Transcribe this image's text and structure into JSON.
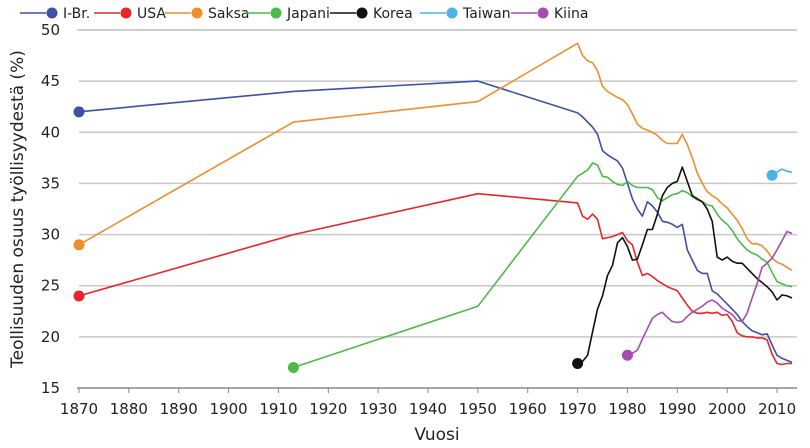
{
  "chart_data": {
    "type": "line",
    "title": "",
    "xlabel": "Vuosi",
    "ylabel": "Teollisuuden osuus työllisyydestä (%)",
    "xlim": [
      1870,
      2014
    ],
    "ylim": [
      15,
      50
    ],
    "xticks": [
      1870,
      1880,
      1890,
      1900,
      1910,
      1920,
      1930,
      1940,
      1950,
      1960,
      1970,
      1980,
      1990,
      2000,
      2010
    ],
    "yticks": [
      15,
      20,
      25,
      30,
      35,
      40,
      45,
      50
    ],
    "grid": "horizontal",
    "legend": "top",
    "series": [
      {
        "name": "I-Br.",
        "color": "#3f4fa8",
        "x": [
          1870,
          1913,
          1950,
          1970,
          1971,
          1972,
          1973,
          1974,
          1975,
          1976,
          1977,
          1978,
          1979,
          1980,
          1981,
          1982,
          1983,
          1984,
          1985,
          1986,
          1987,
          1988,
          1989,
          1990,
          1991,
          1992,
          1993,
          1994,
          1995,
          1996,
          1997,
          1998,
          1999,
          2000,
          2001,
          2002,
          2003,
          2004,
          2005,
          2006,
          2007,
          2008,
          2009,
          2010,
          2011,
          2012,
          2013
        ],
        "y": [
          42,
          44,
          45,
          41.9,
          41.5,
          41,
          40.5,
          39.8,
          38.2,
          37.8,
          37.5,
          37.2,
          36.5,
          35,
          33.5,
          32.5,
          31.8,
          33.2,
          32.8,
          32.2,
          31.3,
          31.2,
          31,
          30.7,
          31,
          28.5,
          27.5,
          26.5,
          26.2,
          26.2,
          24.5,
          24.2,
          23.7,
          23.2,
          22.7,
          22.2,
          21.5,
          21,
          20.6,
          20.4,
          20.2,
          20.3,
          19.2,
          18.2,
          17.9,
          17.7,
          17.5
        ]
      },
      {
        "name": "USA",
        "color": "#e8262a",
        "x": [
          1870,
          1913,
          1950,
          1970,
          1971,
          1972,
          1973,
          1974,
          1975,
          1976,
          1977,
          1978,
          1979,
          1980,
          1981,
          1982,
          1983,
          1984,
          1985,
          1986,
          1987,
          1988,
          1989,
          1990,
          1991,
          1992,
          1993,
          1994,
          1995,
          1996,
          1997,
          1998,
          1999,
          2000,
          2001,
          2002,
          2003,
          2004,
          2005,
          2006,
          2007,
          2008,
          2009,
          2010,
          2011,
          2012,
          2013
        ],
        "y": [
          24,
          30,
          34,
          33.1,
          31.8,
          31.5,
          32,
          31.5,
          29.6,
          29.7,
          29.8,
          30,
          30.2,
          29.4,
          29,
          27.3,
          26,
          26.2,
          25.9,
          25.5,
          25.2,
          24.9,
          24.7,
          24.5,
          23.8,
          23.1,
          22.5,
          22.3,
          22.3,
          22.4,
          22.3,
          22.4,
          22.1,
          22.2,
          21.5,
          20.4,
          20.1,
          20,
          20,
          19.9,
          19.9,
          19.7,
          18.3,
          17.4,
          17.3,
          17.4,
          17.4
        ]
      },
      {
        "name": "Saksa",
        "color": "#ee8e2c",
        "x": [
          1870,
          1913,
          1950,
          1970,
          1971,
          1972,
          1973,
          1974,
          1975,
          1976,
          1977,
          1978,
          1979,
          1980,
          1981,
          1982,
          1983,
          1984,
          1985,
          1986,
          1987,
          1988,
          1989,
          1990,
          1991,
          1992,
          1993,
          1994,
          1995,
          1996,
          1997,
          1998,
          1999,
          2000,
          2001,
          2002,
          2003,
          2004,
          2005,
          2006,
          2007,
          2008,
          2009,
          2010,
          2011,
          2012,
          2013
        ],
        "y": [
          29,
          41,
          43,
          48.7,
          47.5,
          47,
          46.8,
          46,
          44.5,
          44,
          43.7,
          43.4,
          43.2,
          42.7,
          41.8,
          40.8,
          40.4,
          40.2,
          40,
          39.7,
          39.2,
          38.9,
          38.9,
          38.9,
          39.8,
          38.8,
          37.5,
          36,
          35,
          34.2,
          33.8,
          33.5,
          33,
          32.6,
          32,
          31.4,
          30.6,
          29.6,
          29.1,
          29.1,
          28.9,
          28.4,
          27.7,
          27.3,
          27.1,
          26.8,
          26.5
        ]
      },
      {
        "name": "Japani",
        "color": "#4cba48",
        "x": [
          1913,
          1950,
          1970,
          1971,
          1972,
          1973,
          1974,
          1975,
          1976,
          1977,
          1978,
          1979,
          1980,
          1981,
          1982,
          1983,
          1984,
          1985,
          1986,
          1987,
          1988,
          1989,
          1990,
          1991,
          1992,
          1993,
          1994,
          1995,
          1996,
          1997,
          1998,
          1999,
          2000,
          2001,
          2002,
          2003,
          2004,
          2005,
          2006,
          2007,
          2008,
          2009,
          2010,
          2011,
          2012,
          2013
        ],
        "y": [
          17,
          23,
          35.7,
          36,
          36.3,
          37,
          36.8,
          35.7,
          35.6,
          35.2,
          34.9,
          34.8,
          35.2,
          34.8,
          34.6,
          34.6,
          34.6,
          34.4,
          33.6,
          33.3,
          33.6,
          33.9,
          34,
          34.3,
          34.1,
          33.7,
          33.4,
          33.2,
          32.9,
          32.8,
          32,
          31.4,
          31,
          30.4,
          29.6,
          29,
          28.5,
          28.2,
          28,
          27.6,
          27.3,
          26.3,
          25.4,
          25.2,
          25,
          24.9
        ]
      },
      {
        "name": "Korea",
        "color": "#111111",
        "x": [
          1970,
          1971,
          1972,
          1973,
          1974,
          1975,
          1976,
          1977,
          1978,
          1979,
          1980,
          1981,
          1982,
          1983,
          1984,
          1985,
          1986,
          1987,
          1988,
          1989,
          1990,
          1991,
          1992,
          1993,
          1994,
          1995,
          1996,
          1997,
          1998,
          1999,
          2000,
          2001,
          2002,
          2003,
          2004,
          2005,
          2006,
          2007,
          2008,
          2009,
          2010,
          2011,
          2012,
          2013
        ],
        "y": [
          17.4,
          17.6,
          18.2,
          20.5,
          22.7,
          24,
          26,
          27,
          29.2,
          29.7,
          28.8,
          27.5,
          27.6,
          29,
          30.5,
          30.5,
          32,
          33.8,
          34.6,
          35,
          35.2,
          36.6,
          35.2,
          33.8,
          33.5,
          33.2,
          32.5,
          31.3,
          27.8,
          27.5,
          27.8,
          27.4,
          27.2,
          27.2,
          26.7,
          26.2,
          25.7,
          25.3,
          24.9,
          24.4,
          23.6,
          24.1,
          24,
          23.8
        ]
      },
      {
        "name": "Taiwan",
        "color": "#4bb3e6",
        "x": [
          2009,
          2010,
          2011,
          2012,
          2013
        ],
        "y": [
          35.8,
          36.1,
          36.4,
          36.2,
          36.1
        ]
      },
      {
        "name": "Kiina",
        "color": "#a84ab0",
        "x": [
          1980,
          1981,
          1982,
          1983,
          1984,
          1985,
          1986,
          1987,
          1988,
          1989,
          1990,
          1991,
          1992,
          1993,
          1994,
          1995,
          1996,
          1997,
          1998,
          1999,
          2000,
          2001,
          2002,
          2003,
          2004,
          2005,
          2006,
          2007,
          2008,
          2009,
          2010,
          2011,
          2012,
          2013
        ],
        "y": [
          18.2,
          18.4,
          18.7,
          19.8,
          20.8,
          21.8,
          22.2,
          22.4,
          21.9,
          21.5,
          21.4,
          21.5,
          22,
          22.4,
          22.7,
          23,
          23.4,
          23.6,
          23.3,
          22.8,
          22.5,
          22.2,
          21.6,
          21.5,
          22.3,
          23.8,
          25.2,
          26.8,
          27.2,
          27.7,
          28.5,
          29.4,
          30.3,
          30.1
        ]
      }
    ]
  }
}
